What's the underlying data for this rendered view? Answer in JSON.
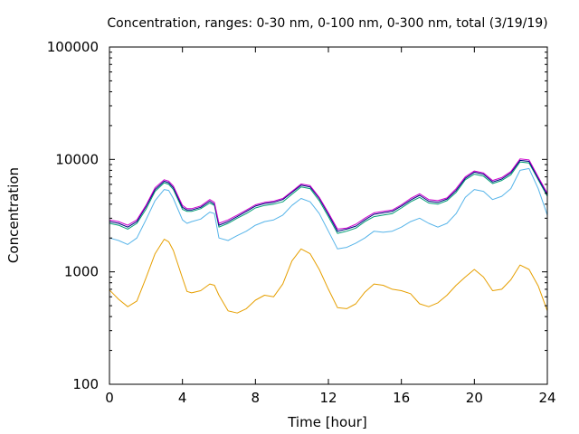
{
  "chart_data": {
    "type": "line",
    "title": "Concentration, ranges: 0-30 nm, 0-100 nm, 0-300 nm, total (3/19/19)",
    "xlabel": "Time [hour]",
    "ylabel": "Concentration",
    "xlim": [
      0,
      24
    ],
    "ylim": [
      100,
      100000
    ],
    "yscale": "log",
    "xticks": [
      0,
      4,
      8,
      12,
      16,
      20,
      24
    ],
    "yticks": [
      100,
      1000,
      10000,
      100000
    ],
    "xtick_labels": [
      "0",
      "4",
      "8",
      "12",
      "16",
      "20",
      "24"
    ],
    "ytick_labels": [
      "100",
      "1000",
      "10000",
      "100000"
    ],
    "grid": false,
    "x": [
      0,
      0.5,
      1,
      1.5,
      2,
      2.5,
      3,
      3.25,
      3.5,
      4,
      4.25,
      4.5,
      5,
      5.5,
      5.75,
      6,
      6.5,
      7,
      7.5,
      8,
      8.5,
      9,
      9.5,
      10,
      10.5,
      11,
      11.5,
      12,
      12.5,
      13,
      13.5,
      14,
      14.5,
      15,
      15.5,
      16,
      16.5,
      17,
      17.5,
      18,
      18.5,
      19,
      19.5,
      20,
      20.5,
      21,
      21.5,
      22,
      22.5,
      23,
      23.5,
      24
    ],
    "series": [
      {
        "color": "#e69f00",
        "values": [
          690,
          570,
          490,
          550,
          880,
          1450,
          1950,
          1850,
          1550,
          880,
          670,
          650,
          680,
          780,
          760,
          620,
          450,
          430,
          470,
          560,
          620,
          600,
          780,
          1250,
          1600,
          1450,
          1050,
          700,
          480,
          470,
          520,
          660,
          780,
          760,
          700,
          680,
          640,
          520,
          490,
          530,
          620,
          760,
          900,
          1050,
          900,
          680,
          700,
          850,
          1150,
          1050,
          750,
          450
        ]
      },
      {
        "color": "#56b4e9",
        "values": [
          2000,
          1900,
          1750,
          2000,
          2900,
          4300,
          5400,
          5300,
          4500,
          2900,
          2700,
          2800,
          2950,
          3400,
          3300,
          2000,
          1900,
          2100,
          2300,
          2600,
          2800,
          2900,
          3200,
          3900,
          4500,
          4200,
          3300,
          2300,
          1600,
          1650,
          1800,
          2000,
          2300,
          2250,
          2300,
          2500,
          2800,
          3000,
          2700,
          2500,
          2700,
          3300,
          4600,
          5400,
          5200,
          4400,
          4700,
          5500,
          8000,
          8300,
          5500,
          3200
        ]
      },
      {
        "color": "#009e73",
        "values": [
          2700,
          2600,
          2400,
          2700,
          3600,
          5200,
          6200,
          6000,
          5400,
          3600,
          3450,
          3450,
          3650,
          4100,
          3900,
          2500,
          2700,
          3000,
          3300,
          3700,
          3900,
          4000,
          4200,
          4900,
          5700,
          5500,
          4300,
          3100,
          2200,
          2300,
          2450,
          2800,
          3100,
          3200,
          3300,
          3700,
          4200,
          4600,
          4100,
          4000,
          4300,
          5100,
          6600,
          7400,
          7100,
          6100,
          6500,
          7300,
          9500,
          9300,
          6600,
          4700
        ]
      },
      {
        "color": "#000080",
        "values": [
          2800,
          2700,
          2500,
          2800,
          3800,
          5400,
          6400,
          6200,
          5600,
          3750,
          3550,
          3550,
          3750,
          4250,
          4000,
          2600,
          2800,
          3100,
          3450,
          3850,
          4050,
          4150,
          4400,
          5100,
          5900,
          5700,
          4500,
          3250,
          2300,
          2400,
          2550,
          2900,
          3250,
          3350,
          3450,
          3850,
          4350,
          4800,
          4250,
          4150,
          4450,
          5300,
          6800,
          7700,
          7400,
          6300,
          6700,
          7600,
          9800,
          9600,
          6800,
          4850
        ]
      },
      {
        "color": "#cc00cc",
        "values": [
          2900,
          2800,
          2600,
          2900,
          3900,
          5600,
          6600,
          6400,
          5800,
          3900,
          3650,
          3650,
          3850,
          4400,
          4150,
          2700,
          2900,
          3200,
          3550,
          3950,
          4150,
          4250,
          4500,
          5200,
          6050,
          5850,
          4600,
          3350,
          2400,
          2450,
          2650,
          3000,
          3350,
          3450,
          3550,
          3950,
          4500,
          4950,
          4400,
          4300,
          4550,
          5500,
          7000,
          7900,
          7600,
          6500,
          6900,
          7800,
          10100,
          9900,
          7000,
          5000
        ]
      }
    ]
  }
}
